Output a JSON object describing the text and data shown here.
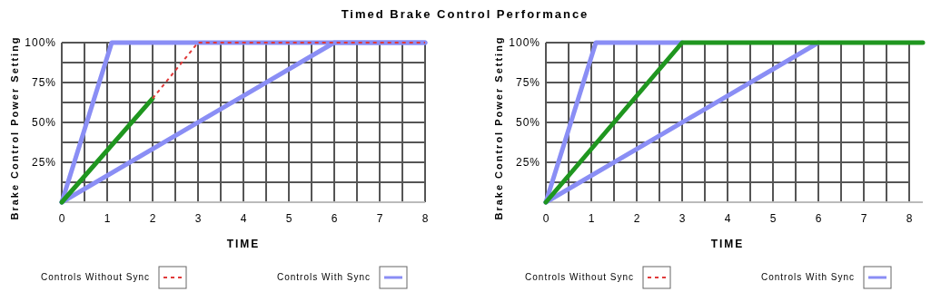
{
  "chart_data": [
    {
      "type": "line",
      "title": "Timed Brake Control Performance",
      "xlabel": "TIME",
      "ylabel": "Brake Control Power Setting",
      "xlim": [
        0,
        8
      ],
      "ylim": [
        0,
        100
      ],
      "xticks": [
        0,
        {
          "value": 0.5,
          "label": null
        },
        1,
        {
          "value": 1.5,
          "label": null
        },
        2,
        {
          "value": 2.5,
          "label": null
        },
        3,
        {
          "value": 3.5,
          "label": null
        },
        4,
        {
          "value": 4.5,
          "label": null
        },
        5,
        {
          "value": 5.5,
          "label": null
        },
        6,
        {
          "value": 6.5,
          "label": null
        },
        7,
        {
          "value": 7.5,
          "label": null
        },
        8
      ],
      "yticks": [
        {
          "value": 12.5,
          "label": null
        },
        {
          "value": 25,
          "label": "25%"
        },
        {
          "value": 37.5,
          "label": null
        },
        {
          "value": 50,
          "label": "50%"
        },
        {
          "value": 62.5,
          "label": null
        },
        {
          "value": 75,
          "label": "75%"
        },
        {
          "value": 87.5,
          "label": null
        },
        {
          "value": 100,
          "label": "100%"
        }
      ],
      "grid": true,
      "legend": "bottom",
      "series": [
        {
          "name": "Controls Without Sync",
          "color": "#e03a3a",
          "line_style": "dashed",
          "x": [
            2,
            3,
            8
          ],
          "values": [
            65,
            100,
            100
          ]
        },
        {
          "name": "Controls With Sync",
          "color": "#8a8ef5",
          "x": [
            0,
            1.1,
            8
          ],
          "values": [
            0,
            100,
            100
          ]
        },
        {
          "color": "#8a8ef5",
          "x": [
            0,
            6,
            8
          ],
          "values": [
            0,
            100,
            100
          ]
        },
        {
          "color": "#1f961f",
          "x": [
            0,
            2
          ],
          "values": [
            0,
            65
          ]
        }
      ]
    },
    {
      "type": "line",
      "xlabel": "TIME",
      "ylabel": "Brake Control Power Setting",
      "xlim": [
        0,
        8.3
      ],
      "ylim": [
        0,
        100
      ],
      "xticks": [
        0,
        {
          "value": 0.5,
          "label": null
        },
        1,
        {
          "value": 1.5,
          "label": null
        },
        2,
        {
          "value": 2.5,
          "label": null
        },
        3,
        {
          "value": 3.5,
          "label": null
        },
        4,
        {
          "value": 4.5,
          "label": null
        },
        5,
        {
          "value": 5.5,
          "label": null
        },
        6,
        {
          "value": 6.5,
          "label": null
        },
        7,
        {
          "value": 7.5,
          "label": null
        },
        8
      ],
      "yticks": [
        {
          "value": 12.5,
          "label": null
        },
        {
          "value": 25,
          "label": "25%"
        },
        {
          "value": 37.5,
          "label": null
        },
        {
          "value": 50,
          "label": "50%"
        },
        {
          "value": 62.5,
          "label": null
        },
        {
          "value": 75,
          "label": "75%"
        },
        {
          "value": 87.5,
          "label": null
        },
        {
          "value": 100,
          "label": "100%"
        }
      ],
      "grid": true,
      "legend": "bottom",
      "series": [
        {
          "name": "Controls Without Sync",
          "color": "#e03a3a",
          "line_style": "dashed"
        },
        {
          "name": "Controls With Sync",
          "color": "#8a8ef5",
          "x": [
            0,
            1.1,
            3
          ],
          "values": [
            0,
            100,
            100
          ]
        },
        {
          "color": "#8a8ef5",
          "x": [
            0,
            6
          ],
          "values": [
            0,
            100
          ]
        },
        {
          "color": "#1f961f",
          "x": [
            0,
            3,
            8.3
          ],
          "values": [
            0,
            100,
            100
          ]
        }
      ]
    }
  ]
}
